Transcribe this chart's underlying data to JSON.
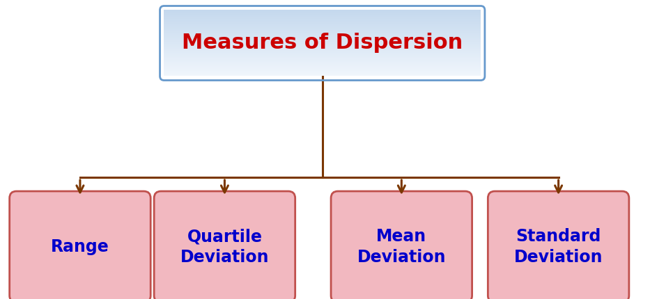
{
  "title": "Measures of Dispersion",
  "title_color": "#CC0000",
  "title_bg_top": "#DDEAF6",
  "title_bg_bottom": "#FFFFFF",
  "title_border_color": "#6699CC",
  "children": [
    "Range",
    "Quartile\nDeviation",
    "Mean\nDeviation",
    "Standard\nDeviation"
  ],
  "child_bg_color": "#F2B8C0",
  "child_border_color": "#C0504D",
  "child_text_color": "#0000CC",
  "arrow_color": "#7B3700",
  "background_color": "#FFFFFF",
  "left_bar_color": "#92D050",
  "fig_width": 9.33,
  "fig_height": 4.3,
  "title_fontsize": 22,
  "child_fontsize": 17
}
